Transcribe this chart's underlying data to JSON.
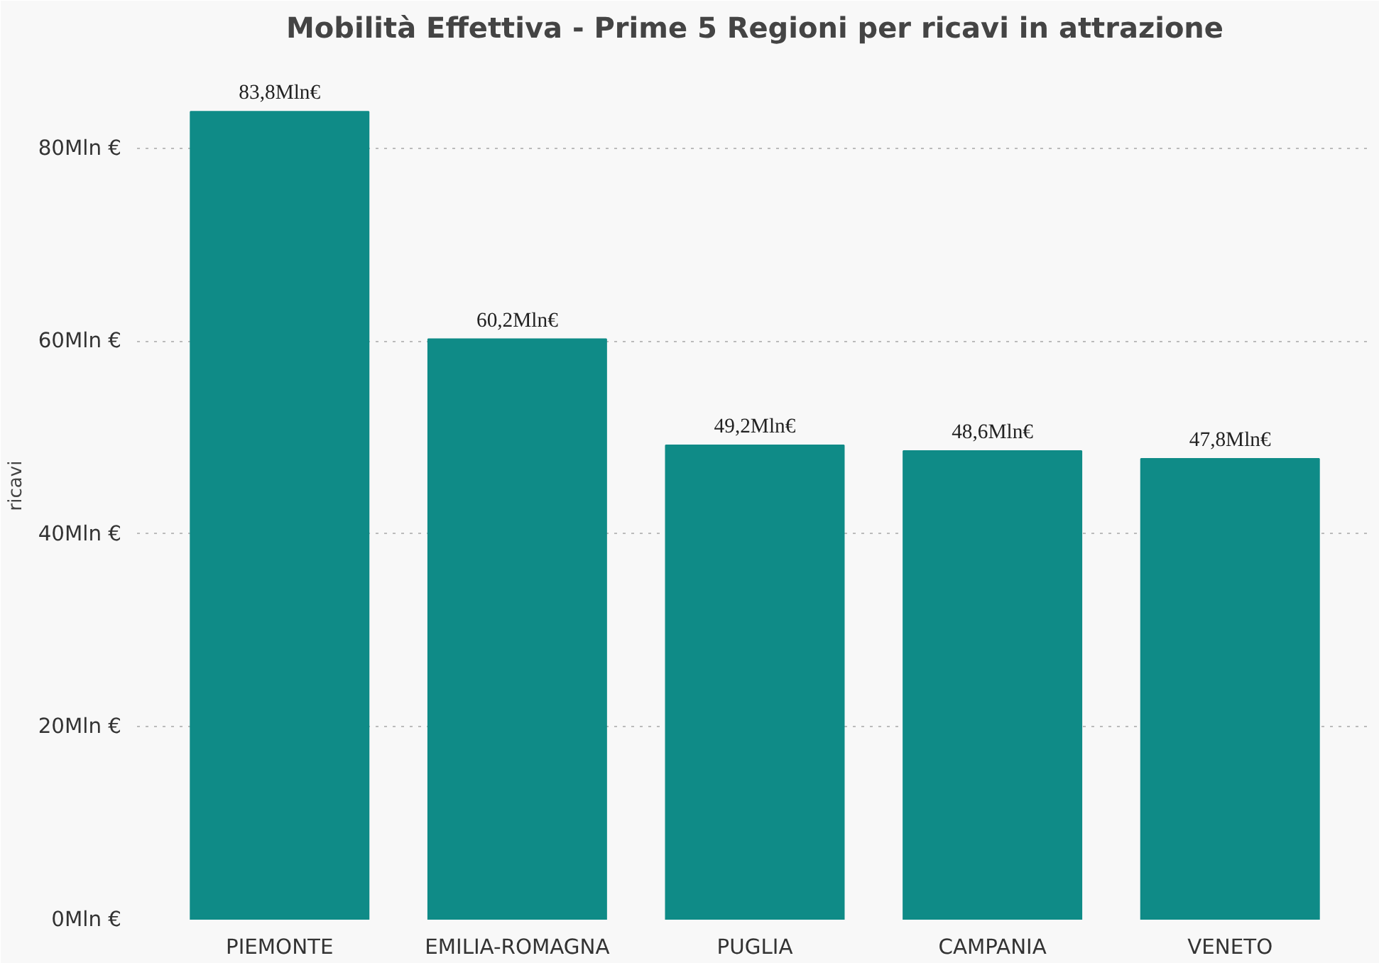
{
  "chart_data": {
    "type": "bar",
    "title": "Mobilità Effettiva - Prime 5 Regioni per ricavi in attrazione",
    "ylabel": "ricavi",
    "categories": [
      "PIEMONTE",
      "EMILIA-ROMAGNA",
      "PUGLIA",
      "CAMPANIA",
      "VENETO"
    ],
    "values": [
      83.8,
      60.2,
      49.2,
      48.6,
      47.8
    ],
    "value_labels": [
      "83,8Mln€",
      "60,2Mln€",
      "49,2Mln€",
      "48,6Mln€",
      "47,8Mln€"
    ],
    "color": "#0f8b87",
    "ylim": [
      0,
      90
    ],
    "yticks": [
      {
        "value": 0,
        "label": "0Mln €"
      },
      {
        "value": 20,
        "label": "20Mln €"
      },
      {
        "value": 40,
        "label": "40Mln €"
      },
      {
        "value": 60,
        "label": "60Mln €"
      },
      {
        "value": 80,
        "label": "80Mln €"
      }
    ],
    "grid": "y"
  }
}
